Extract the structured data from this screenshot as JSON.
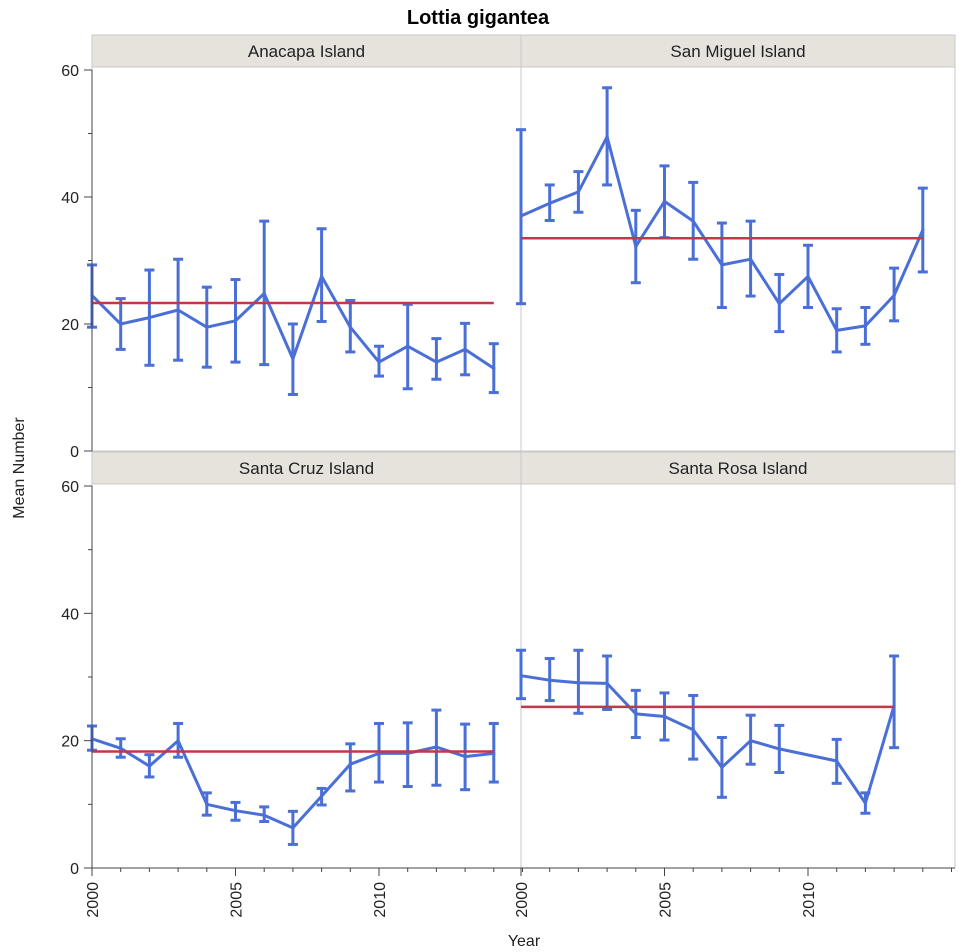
{
  "chart_data": {
    "type": "line",
    "title": "Lottia gigantea",
    "xlabel": "Year",
    "ylabel": "Mean Number",
    "xlim": [
      2000,
      2015
    ],
    "ylim": [
      0,
      60
    ],
    "x_ticks": [
      2000,
      2005,
      2010
    ],
    "x_tick_labels": [
      "2000",
      "2005",
      "2010"
    ],
    "y_ticks": [
      0,
      20,
      40,
      60
    ],
    "y_tick_labels": [
      "0",
      "20",
      "40",
      "60"
    ],
    "grid": false,
    "colors": {
      "series": "#4a6fd6",
      "mean_line": "#c0384a",
      "strip": "#e6e3dd",
      "frame": "#c8c8c8"
    },
    "panels": [
      {
        "name": "Anacapa Island",
        "mean": 23.3,
        "x": [
          2000,
          2001,
          2002,
          2003,
          2004,
          2005,
          2006,
          2007,
          2008,
          2009,
          2010,
          2011,
          2012,
          2013,
          2014
        ],
        "y": [
          24.5,
          20,
          21,
          22.2,
          19.5,
          20.5,
          24.8,
          14.5,
          27.5,
          19.5,
          14,
          16.5,
          14,
          16,
          13
        ],
        "lower": [
          19.5,
          16,
          13.5,
          14.3,
          13.2,
          14,
          13.6,
          8.9,
          20.4,
          15.6,
          11.8,
          9.8,
          11.3,
          12,
          9.2
        ],
        "upper": [
          29.3,
          24,
          28.5,
          30.2,
          25.8,
          27,
          36.2,
          20,
          35,
          23.7,
          16.5,
          23.1,
          17.7,
          20.1,
          16.9
        ]
      },
      {
        "name": "San Miguel Island",
        "mean": 33.5,
        "x": [
          2000,
          2001,
          2002,
          2003,
          2004,
          2005,
          2006,
          2007,
          2008,
          2009,
          2010,
          2011,
          2012,
          2013,
          2014
        ],
        "y": [
          37,
          39,
          40.8,
          49.5,
          32.2,
          39.3,
          36.2,
          29.3,
          30.2,
          23.2,
          27.5,
          19,
          19.7,
          24.5,
          34.8
        ],
        "lower": [
          23.2,
          36.3,
          37.6,
          41.9,
          26.5,
          33.6,
          30.2,
          22.6,
          24.4,
          18.8,
          22.6,
          15.6,
          16.8,
          20.5,
          28.2
        ],
        "upper": [
          50.6,
          41.9,
          44,
          57.2,
          37.9,
          44.9,
          42.3,
          35.9,
          36.2,
          27.8,
          32.4,
          22.4,
          22.6,
          28.8,
          41.4
        ]
      },
      {
        "name": "Santa Cruz Island",
        "mean": 18.3,
        "x": [
          2000,
          2001,
          2002,
          2003,
          2004,
          2005,
          2006,
          2007,
          2008,
          2009,
          2010,
          2011,
          2012,
          2013,
          2014
        ],
        "y": [
          20.3,
          18.8,
          16,
          20,
          10,
          9,
          8.3,
          6.3,
          11.3,
          16.3,
          18,
          18,
          19,
          17.5,
          18
        ],
        "lower": [
          18.5,
          17.4,
          14.3,
          17.4,
          8.3,
          7.5,
          7.3,
          3.7,
          9.9,
          12.1,
          13.5,
          12.8,
          13,
          12.3,
          13.5
        ],
        "upper": [
          22.3,
          20.3,
          17.8,
          22.7,
          11.8,
          10.3,
          9.6,
          8.9,
          12.5,
          19.5,
          22.7,
          22.8,
          24.8,
          22.6,
          22.7
        ]
      },
      {
        "name": "Santa Rosa Island",
        "mean": 25.3,
        "x": [
          2000,
          2001,
          2002,
          2003,
          2004,
          2005,
          2006,
          2007,
          2008,
          2009,
          2011,
          2012,
          2013
        ],
        "y": [
          30.2,
          29.5,
          29.1,
          29,
          24.2,
          23.8,
          21.7,
          15.8,
          20,
          18.7,
          16.8,
          10.2,
          25.5
        ],
        "lower": [
          26.6,
          26.3,
          24.3,
          24.9,
          20.5,
          20.1,
          17.1,
          11.1,
          16.3,
          15,
          13.3,
          8.6,
          18.9
        ],
        "upper": [
          34.2,
          32.9,
          34.2,
          33.3,
          27.9,
          27.5,
          27.1,
          20.5,
          24,
          22.4,
          20.2,
          11.8,
          33.3
        ]
      }
    ]
  }
}
